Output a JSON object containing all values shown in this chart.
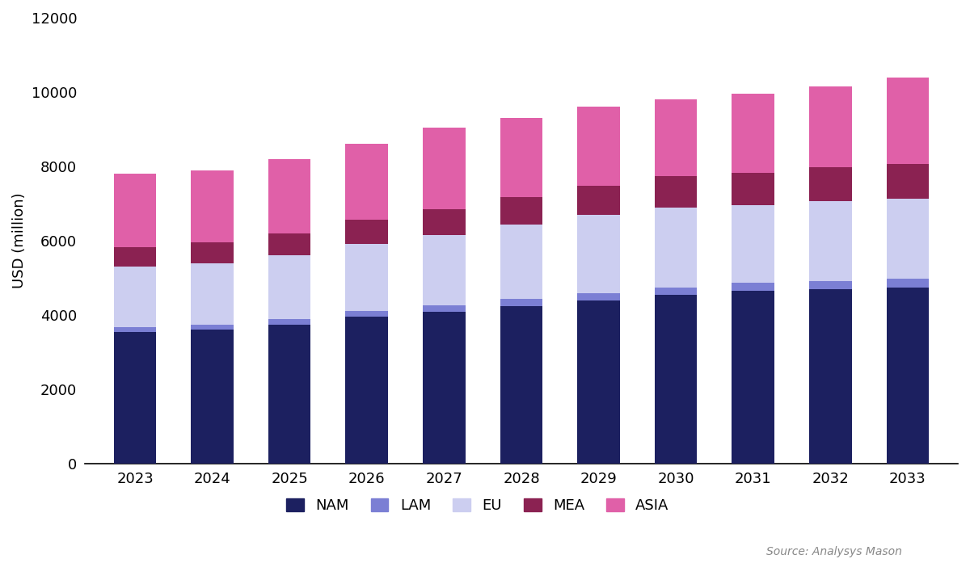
{
  "years": [
    2023,
    2024,
    2025,
    2026,
    2027,
    2028,
    2029,
    2030,
    2031,
    2032,
    2033
  ],
  "NAM": [
    3550,
    3600,
    3750,
    3950,
    4080,
    4250,
    4400,
    4550,
    4650,
    4700,
    4750
  ],
  "LAM": [
    130,
    140,
    150,
    160,
    175,
    180,
    190,
    200,
    210,
    220,
    230
  ],
  "EU": [
    1620,
    1650,
    1700,
    1800,
    1900,
    2000,
    2100,
    2150,
    2100,
    2150,
    2150
  ],
  "MEA": [
    530,
    560,
    600,
    650,
    700,
    750,
    790,
    830,
    860,
    900,
    940
  ],
  "ASIA": [
    1970,
    1950,
    2000,
    2040,
    2195,
    2120,
    2120,
    2070,
    2130,
    2180,
    2330
  ],
  "colors": {
    "NAM": "#1c2060",
    "LAM": "#7b7fd4",
    "EU": "#cccef0",
    "MEA": "#8b2252",
    "ASIA": "#e060a8"
  },
  "ylabel": "USD (million)",
  "ylim": [
    0,
    12000
  ],
  "yticks": [
    0,
    2000,
    4000,
    6000,
    8000,
    10000,
    12000
  ],
  "source_text": "Source: Analysys Mason",
  "background_color": "#ffffff",
  "bar_width": 0.55
}
